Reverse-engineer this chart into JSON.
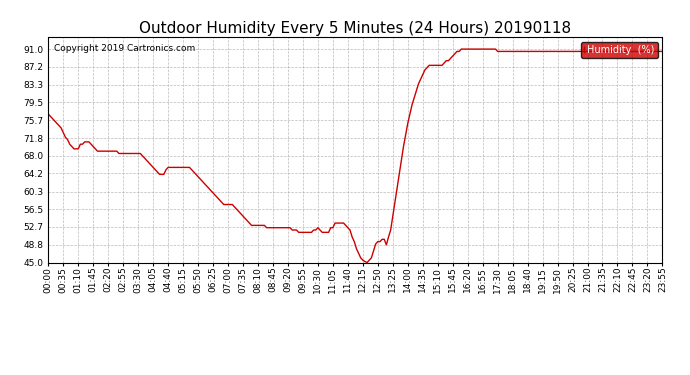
{
  "title": "Outdoor Humidity Every 5 Minutes (24 Hours) 20190118",
  "copyright_text": "Copyright 2019 Cartronics.com",
  "legend_label": "Humidity  (%)",
  "legend_bg": "#cc0000",
  "legend_text_color": "#ffffff",
  "line_color": "#cc0000",
  "background_color": "#ffffff",
  "grid_color": "#aaaaaa",
  "ylim": [
    45.0,
    93.5
  ],
  "yticks": [
    45.0,
    48.8,
    52.7,
    56.5,
    60.3,
    64.2,
    68.0,
    71.8,
    75.7,
    79.5,
    83.3,
    87.2,
    91.0
  ],
  "title_fontsize": 11,
  "tick_fontsize": 6.5,
  "humidity_data": [
    77.0,
    76.5,
    76.0,
    75.5,
    75.0,
    74.5,
    74.0,
    73.0,
    72.0,
    71.5,
    70.5,
    70.0,
    69.5,
    69.5,
    69.5,
    70.5,
    70.5,
    71.0,
    71.0,
    71.0,
    70.5,
    70.0,
    69.5,
    69.0,
    69.0,
    69.0,
    69.0,
    69.0,
    69.0,
    69.0,
    69.0,
    69.0,
    69.0,
    68.5,
    68.5,
    68.5,
    68.5,
    68.5,
    68.5,
    68.5,
    68.5,
    68.5,
    68.5,
    68.5,
    68.0,
    67.5,
    67.0,
    66.5,
    66.0,
    65.5,
    65.0,
    64.5,
    64.0,
    64.0,
    64.0,
    65.0,
    65.5,
    65.5,
    65.5,
    65.5,
    65.5,
    65.5,
    65.5,
    65.5,
    65.5,
    65.5,
    65.5,
    65.0,
    64.5,
    64.0,
    63.5,
    63.0,
    62.5,
    62.0,
    61.5,
    61.0,
    60.5,
    60.0,
    59.5,
    59.0,
    58.5,
    58.0,
    57.5,
    57.5,
    57.5,
    57.5,
    57.5,
    57.0,
    56.5,
    56.0,
    55.5,
    55.0,
    54.5,
    54.0,
    53.5,
    53.0,
    53.0,
    53.0,
    53.0,
    53.0,
    53.0,
    53.0,
    52.5,
    52.5,
    52.5,
    52.5,
    52.5,
    52.5,
    52.5,
    52.5,
    52.5,
    52.5,
    52.5,
    52.5,
    52.0,
    52.0,
    52.0,
    51.5,
    51.5,
    51.5,
    51.5,
    51.5,
    51.5,
    51.5,
    52.0,
    52.0,
    52.5,
    52.0,
    51.5,
    51.5,
    51.5,
    51.5,
    52.5,
    52.5,
    53.5,
    53.5,
    53.5,
    53.5,
    53.5,
    53.0,
    52.5,
    52.0,
    50.5,
    49.5,
    48.0,
    47.0,
    46.0,
    45.5,
    45.2,
    45.0,
    45.5,
    46.0,
    47.5,
    49.0,
    49.5,
    49.5,
    50.0,
    50.0,
    48.8,
    50.5,
    52.0,
    55.0,
    58.0,
    61.0,
    64.0,
    67.0,
    70.0,
    72.5,
    75.0,
    77.0,
    79.0,
    80.5,
    82.0,
    83.5,
    84.5,
    85.5,
    86.5,
    87.0,
    87.5,
    87.5,
    87.5,
    87.5,
    87.5,
    87.5,
    87.5,
    88.0,
    88.5,
    88.5,
    89.0,
    89.5,
    90.0,
    90.5,
    90.5,
    91.0,
    91.0,
    91.0,
    91.0,
    91.0,
    91.0,
    91.0,
    91.0,
    91.0,
    91.0,
    91.0,
    91.0,
    91.0,
    91.0,
    91.0,
    91.0,
    91.0,
    90.5,
    90.5,
    90.5,
    90.5,
    90.5,
    90.5,
    90.5,
    90.5,
    90.5,
    90.5,
    90.5,
    90.5,
    90.5,
    90.5,
    90.5,
    90.5,
    90.5,
    90.5,
    90.5,
    90.5,
    90.5,
    90.5,
    90.5,
    90.5,
    90.5,
    90.5,
    90.5,
    90.5,
    90.5,
    90.5,
    90.5,
    90.5,
    90.5,
    90.5,
    90.5,
    90.5,
    90.5,
    90.5,
    90.5,
    90.5,
    90.5,
    90.5,
    90.5,
    90.5,
    90.5,
    90.5,
    90.5,
    90.5,
    90.5,
    90.5,
    90.5,
    90.5,
    90.5,
    90.5,
    90.5,
    90.5,
    90.5,
    90.5,
    90.5,
    90.5,
    90.5,
    90.5,
    90.5,
    90.5,
    90.5,
    90.5,
    90.5,
    90.5,
    90.5,
    90.5,
    90.5,
    90.5,
    90.5,
    90.5,
    90.5,
    90.5,
    90.5,
    90.5
  ]
}
